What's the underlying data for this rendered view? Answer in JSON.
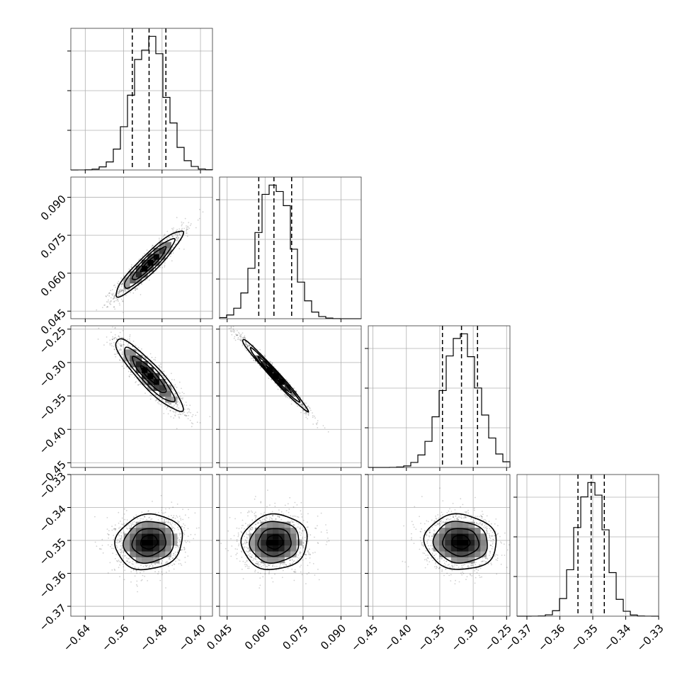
{
  "chart_data": {
    "type": "corner",
    "title": "",
    "parameters": [
      {
        "ticks": [
          -0.64,
          -0.56,
          -0.48,
          -0.4
        ],
        "tick_labels": [
          "−0.64",
          "−0.56",
          "−0.48",
          "−0.40"
        ],
        "range": [
          -0.67,
          -0.375
        ],
        "quantiles": [
          -0.542,
          -0.507,
          -0.472
        ],
        "mean": -0.507,
        "sd": 0.035
      },
      {
        "ticks": [
          0.045,
          0.06,
          0.075,
          0.09
        ],
        "tick_labels": [
          "0.045",
          "0.060",
          "0.075",
          "0.090"
        ],
        "range": [
          0.042,
          0.098
        ],
        "quantiles": [
          0.0575,
          0.0635,
          0.0705
        ],
        "mean": 0.0638,
        "sd": 0.0065
      },
      {
        "ticks": [
          -0.45,
          -0.4,
          -0.35,
          -0.3,
          -0.25
        ],
        "tick_labels": [
          "−0.45",
          "−0.40",
          "−0.35",
          "−0.30",
          "−0.25"
        ],
        "range": [
          -0.457,
          -0.245
        ],
        "quantiles": [
          -0.346,
          -0.3175,
          -0.2935
        ],
        "mean": -0.3185,
        "sd": 0.027
      },
      {
        "ticks": [
          -0.37,
          -0.36,
          -0.35,
          -0.34,
          -0.33
        ],
        "tick_labels": [
          "−0.37",
          "−0.36",
          "−0.35",
          "−0.34",
          "−0.33"
        ],
        "range": [
          -0.373,
          -0.33
        ],
        "quantiles": [
          -0.3545,
          -0.3505,
          -0.3465
        ],
        "mean": -0.3505,
        "sd": 0.0042
      }
    ],
    "correlations": [
      {
        "pair": [
          1,
          0
        ],
        "rho": 0.93
      },
      {
        "pair": [
          2,
          0
        ],
        "rho": -0.9
      },
      {
        "pair": [
          2,
          1
        ],
        "rho": -0.985
      },
      {
        "pair": [
          3,
          0
        ],
        "rho": 0.1
      },
      {
        "pair": [
          3,
          1
        ],
        "rho": 0.05
      },
      {
        "pair": [
          3,
          2
        ],
        "rho": -0.05
      }
    ],
    "histogram_bins": 20,
    "contour_levels_sigma": [
      0.5,
      1.0,
      1.5,
      2.0
    ],
    "grid": true,
    "colors": {
      "line": "#000000",
      "grid": "#b0b0b0",
      "points": "#000000"
    }
  }
}
